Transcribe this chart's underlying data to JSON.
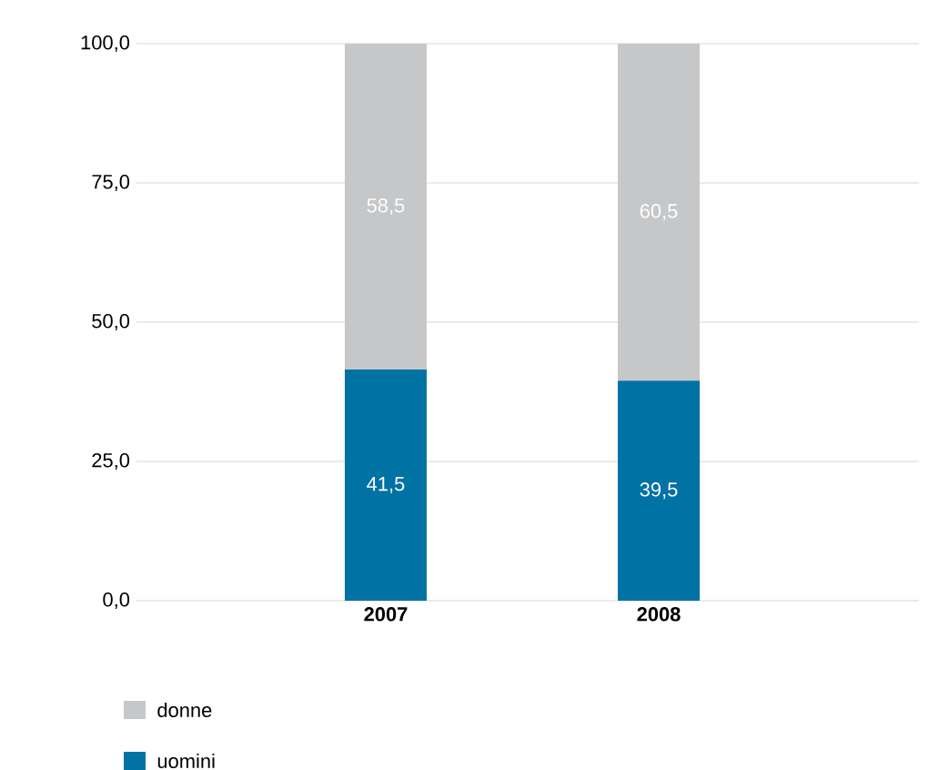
{
  "chart_data": {
    "type": "bar",
    "stacked": true,
    "categories": [
      "2007",
      "2008"
    ],
    "series": [
      {
        "name": "uomini",
        "color": "#0072a3",
        "values": [
          41.5,
          39.5
        ],
        "value_labels": [
          "41,5",
          "39,5"
        ]
      },
      {
        "name": "donne",
        "color": "#c6c7c9",
        "values": [
          58.5,
          60.5
        ],
        "value_labels": [
          "58,5",
          "60,5"
        ]
      }
    ],
    "ylim": [
      0,
      100
    ],
    "yticks": [
      {
        "value": 0,
        "label": "0,0"
      },
      {
        "value": 25,
        "label": "25,0"
      },
      {
        "value": 50,
        "label": "50,0"
      },
      {
        "value": 75,
        "label": "75,0"
      },
      {
        "value": 100,
        "label": "100,0"
      }
    ],
    "grid": "y",
    "legend": "bottom left"
  }
}
